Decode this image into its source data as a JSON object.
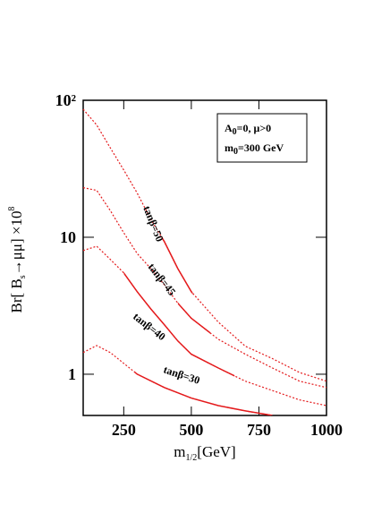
{
  "chart_data": {
    "type": "line",
    "y_label": [
      "Br[ B",
      "s",
      "→μμ] ×10",
      "8"
    ],
    "x_label": [
      "m",
      "1/2",
      "[GeV]"
    ],
    "box_lines": [
      [
        "A",
        "0",
        "=0,  μ>0"
      ],
      [
        "m",
        "0",
        "=300 GeV"
      ]
    ],
    "log_y": true,
    "xlim": [
      100,
      1000
    ],
    "ylim": [
      0.5,
      100
    ],
    "xticks": [
      250,
      500,
      750,
      1000
    ],
    "yticks": [
      1,
      10,
      {
        "value": 100,
        "label": "10²"
      }
    ],
    "color": "#e41a1c",
    "series": [
      {
        "name": "tanβ=50",
        "solid": [
          390,
          505
        ],
        "x": [
          100,
          150,
          200,
          250,
          300,
          350,
          400,
          450,
          500,
          600,
          700,
          800,
          900,
          1000
        ],
        "values": [
          86,
          66,
          45,
          31,
          21,
          13.5,
          9.3,
          5.9,
          4.0,
          2.4,
          1.6,
          1.3,
          1.03,
          0.89
        ]
      },
      {
        "name": "tanβ=45",
        "solid": [
          450,
          570
        ],
        "x": [
          100,
          150,
          200,
          250,
          300,
          350,
          400,
          450,
          500,
          600,
          700,
          800,
          900,
          1000
        ],
        "values": [
          23,
          22,
          15.7,
          10.8,
          7.6,
          5.9,
          4.5,
          3.3,
          2.56,
          1.8,
          1.4,
          1.11,
          0.89,
          0.8
        ]
      },
      {
        "name": "tanβ=40",
        "solid": [
          250,
          660
        ],
        "x": [
          100,
          150,
          200,
          250,
          300,
          350,
          400,
          450,
          500,
          600,
          700,
          800,
          900,
          1000
        ],
        "values": [
          8,
          8.6,
          6.9,
          5.5,
          4.0,
          3.0,
          2.3,
          1.75,
          1.4,
          1.11,
          0.89,
          0.76,
          0.65,
          0.59
        ]
      },
      {
        "name": "tanβ=30",
        "solid": [
          290,
          800
        ],
        "x": [
          100,
          150,
          200,
          250,
          300,
          400,
          500,
          600,
          700,
          800
        ],
        "values": [
          1.44,
          1.62,
          1.44,
          1.2,
          1.0,
          0.8,
          0.67,
          0.59,
          0.54,
          0.5
        ]
      }
    ]
  }
}
